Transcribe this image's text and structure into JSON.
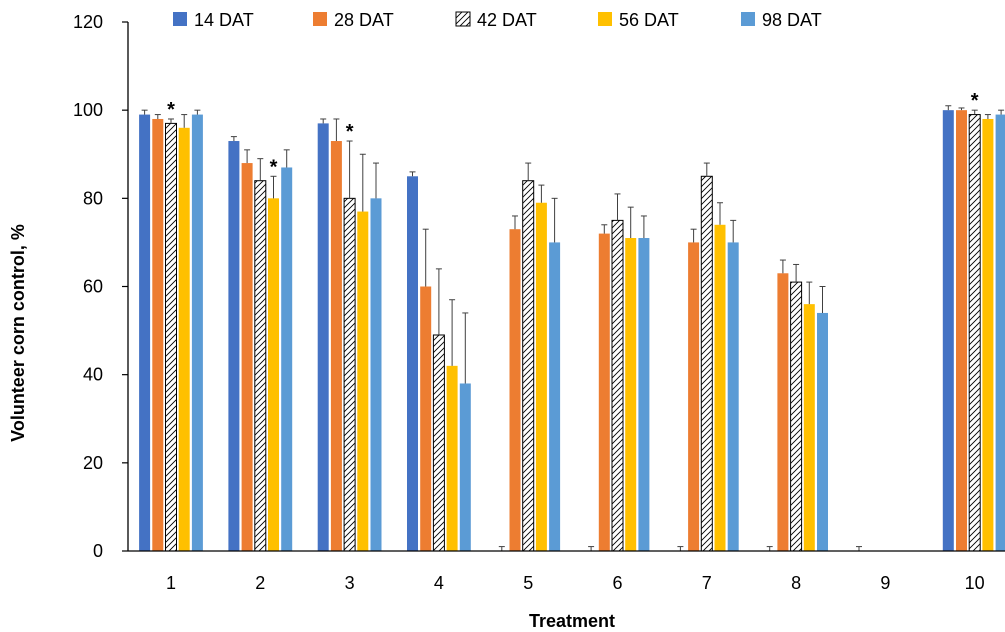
{
  "chart_data": {
    "type": "bar",
    "xlabel": "Treatment",
    "ylabel": "Volunteer corn control, %",
    "ylim": [
      0,
      120
    ],
    "yticks": [
      0,
      20,
      40,
      60,
      80,
      100,
      120
    ],
    "categories": [
      "1",
      "2",
      "3",
      "4",
      "5",
      "6",
      "7",
      "8",
      "9",
      "10"
    ],
    "legend_position": "top",
    "series": [
      {
        "name": "14 DAT",
        "color": "#4472C4",
        "pattern": "solid",
        "values": [
          99,
          93,
          97,
          85,
          0,
          0,
          0,
          0,
          0,
          100
        ],
        "errors": [
          1,
          1,
          1,
          1,
          1,
          1,
          1,
          1,
          1,
          1
        ]
      },
      {
        "name": "28 DAT",
        "color": "#ED7D31",
        "pattern": "solid",
        "values": [
          98,
          88,
          93,
          60,
          73,
          72,
          70,
          63,
          0,
          100
        ],
        "errors": [
          1,
          3,
          5,
          13,
          3,
          2,
          3,
          3,
          0,
          0.5
        ]
      },
      {
        "name": "42 DAT",
        "color": "#FFFFFF",
        "pattern": "hatch",
        "values": [
          97,
          84,
          80,
          49,
          84,
          75,
          85,
          61,
          0,
          99
        ],
        "errors": [
          1,
          5,
          13,
          15,
          4,
          6,
          3,
          4,
          0,
          1
        ]
      },
      {
        "name": "56 DAT",
        "color": "#FFC000",
        "pattern": "solid",
        "values": [
          96,
          80,
          77,
          42,
          79,
          71,
          74,
          56,
          0,
          98
        ],
        "errors": [
          3,
          5,
          13,
          15,
          4,
          7,
          5,
          5,
          0,
          1
        ]
      },
      {
        "name": "98 DAT",
        "color": "#5B9BD5",
        "pattern": "solid",
        "values": [
          99,
          87,
          80,
          38,
          70,
          71,
          70,
          54,
          0,
          99
        ],
        "errors": [
          1,
          4,
          8,
          16,
          10,
          5,
          5,
          6,
          0,
          1
        ]
      }
    ],
    "annotations": [
      {
        "text": "*",
        "category": "1",
        "series": "42 DAT"
      },
      {
        "text": "*",
        "category": "2",
        "series": "56 DAT"
      },
      {
        "text": "*",
        "category": "3",
        "series": "42 DAT"
      },
      {
        "text": "*",
        "category": "10",
        "series": "42 DAT"
      }
    ]
  }
}
